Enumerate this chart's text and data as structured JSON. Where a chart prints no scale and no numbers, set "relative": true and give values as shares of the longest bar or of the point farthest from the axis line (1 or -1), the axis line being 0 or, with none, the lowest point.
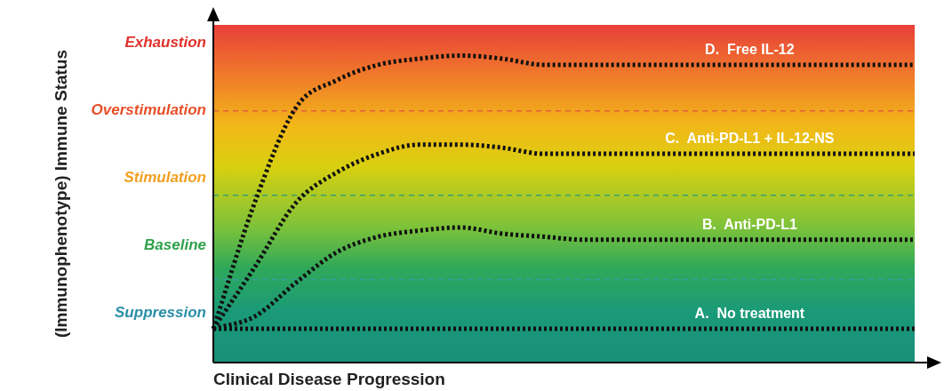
{
  "chart_data": {
    "type": "line",
    "relative": true,
    "xlabel": "Clinical Disease Progression",
    "categories": [
      null,
      null,
      null,
      null,
      null,
      null,
      null,
      null,
      null,
      null,
      null,
      null,
      null,
      null,
      null,
      null,
      null,
      null
    ],
    "series": [
      {
        "name": "A.  No treatment",
        "color": "#111111",
        "values": [
          0.11,
          0.11,
          0.11,
          0.11,
          0.11,
          0.11,
          0.11,
          0.11,
          0.11,
          0.11,
          0.11,
          0.11,
          0.11,
          0.11,
          0.11,
          0.11,
          0.11,
          0.11
        ]
      },
      {
        "name": "B.  Anti-PD-L1",
        "color": "#111111",
        "values": [
          0.11,
          0.15,
          0.26,
          0.36,
          0.41,
          0.43,
          0.44,
          0.42,
          0.41,
          0.4,
          0.4,
          0.4,
          0.4,
          0.4,
          0.4,
          0.4,
          0.4,
          0.4
        ]
      },
      {
        "name": "C.  Anti-PD-L1 + IL-12-NS",
        "color": "#111111",
        "values": [
          0.11,
          0.31,
          0.52,
          0.62,
          0.68,
          0.71,
          0.71,
          0.7,
          0.68,
          0.68,
          0.68,
          0.68,
          0.68,
          0.68,
          0.68,
          0.68,
          0.68,
          0.68
        ]
      },
      {
        "name": "D.  Free IL-12",
        "color": "#111111",
        "values": [
          0.11,
          0.52,
          0.83,
          0.92,
          0.97,
          0.99,
          1.0,
          0.99,
          0.97,
          0.97,
          0.97,
          0.97,
          0.97,
          0.97,
          0.97,
          0.97,
          0.97,
          0.97
        ]
      }
    ],
    "ref_lines": [
      {
        "axis": "y",
        "value": 0.82,
        "color": "#e0603a",
        "line_style": "dashed"
      },
      {
        "axis": "y",
        "value": 0.545,
        "color": "#3aa070",
        "line_style": "dashed"
      },
      {
        "axis": "y",
        "value": 0.27,
        "color": "#3a9fa0",
        "line_style": "dashed"
      }
    ],
    "annotations": [
      "(Immunophenotype) Immune Status",
      "Exhaustion",
      "Overstimulation",
      "Stimulation",
      "Baseline",
      "Suppression"
    ],
    "legend": false,
    "marker": "none",
    "line_style": "dotted"
  }
}
